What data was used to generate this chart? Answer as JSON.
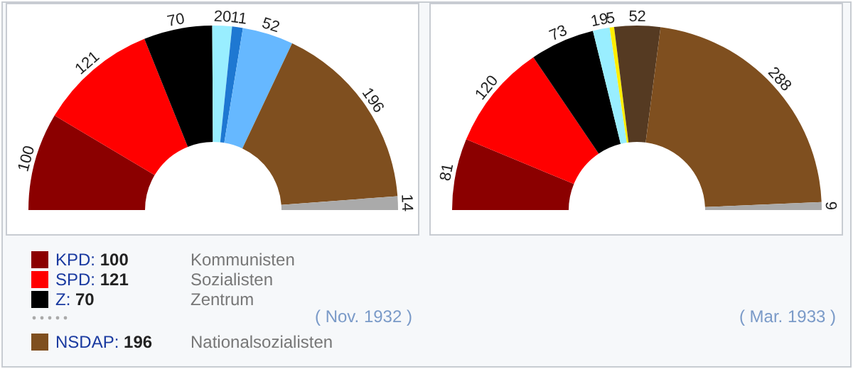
{
  "chart_data": [
    {
      "type": "donut",
      "categories": [
        "KPD: 100",
        "SPD: 121",
        "Z: 70",
        null,
        null,
        null,
        "NSDAP: 196",
        null
      ],
      "values": [
        100,
        121,
        70,
        20,
        11,
        52,
        196,
        14
      ],
      "colors": [
        "#8b0000",
        "#ff0000",
        "#000000",
        "#99eeff",
        "#1e78d2",
        "#66b8ff",
        "#7f4f1f",
        "#aaaaaa"
      ],
      "data_labels": true,
      "legend": "bottom",
      "annotations": [
        "Kommunisten",
        "Sozialisten",
        "Zentrum",
        "Nationalsozialisten",
        "( Nov. 1932 )"
      ]
    },
    {
      "type": "donut",
      "categories": [
        null,
        null,
        null,
        null,
        null,
        null,
        null,
        null
      ],
      "values": [
        81,
        120,
        73,
        19,
        5,
        52,
        288,
        9
      ],
      "colors": [
        "#8b0000",
        "#ff0000",
        "#000000",
        "#99eeff",
        "#ffee00",
        "#553a22",
        "#7f4f1f",
        "#aaaaaa"
      ],
      "data_labels": true,
      "annotations": [
        "( Mar. 1933 )"
      ]
    }
  ]
}
